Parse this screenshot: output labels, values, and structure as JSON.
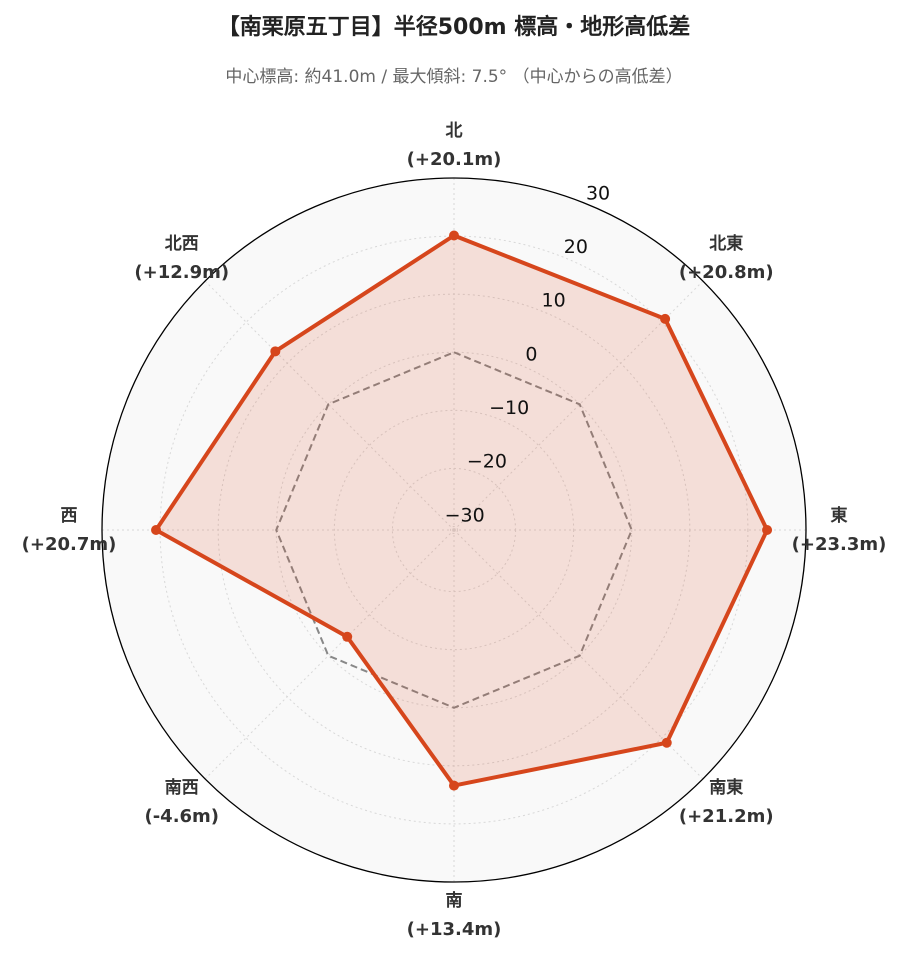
{
  "chart_data": {
    "type": "radar",
    "title": "【南栗原五丁目】半径500m 標高・地形高低差",
    "subtitle": "中心標高: 約41.0m / 最大傾斜: 7.5° （中心からの高低差）",
    "categories": [
      "北",
      "北東",
      "東",
      "南東",
      "南",
      "南西",
      "西",
      "北西"
    ],
    "values": [
      20.1,
      20.8,
      23.3,
      21.2,
      13.4,
      -4.6,
      20.7,
      12.9
    ],
    "value_labels": [
      "(+20.1m)",
      "(+20.8m)",
      "(+23.3m)",
      "(+21.2m)",
      "(+13.4m)",
      "(-4.6m)",
      "(+20.7m)",
      "(+12.9m)"
    ],
    "color": "#d6461c",
    "ylim": [
      -30.6,
      30
    ],
    "yticks": [
      {
        "value": -30,
        "label": "−30"
      },
      {
        "value": -20,
        "label": "−20"
      },
      {
        "value": -10,
        "label": "−10"
      },
      0,
      10,
      20,
      30
    ],
    "grid": true
  }
}
